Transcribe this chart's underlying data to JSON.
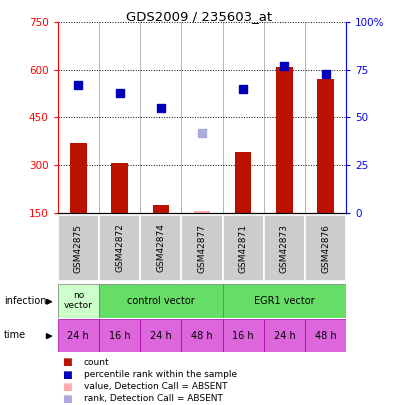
{
  "title": "GDS2009 / 235603_at",
  "samples": [
    "GSM42875",
    "GSM42872",
    "GSM42874",
    "GSM42877",
    "GSM42871",
    "GSM42873",
    "GSM42876"
  ],
  "bar_values": [
    370,
    305,
    175,
    155,
    340,
    610,
    570
  ],
  "bar_absent": [
    false,
    false,
    false,
    true,
    false,
    false,
    false
  ],
  "rank_values": [
    67,
    63,
    55,
    42,
    65,
    77,
    73
  ],
  "rank_absent": [
    false,
    false,
    false,
    true,
    false,
    false,
    false
  ],
  "ylim_left": [
    150,
    750
  ],
  "ylim_right": [
    0,
    100
  ],
  "yticks_left": [
    150,
    300,
    450,
    600,
    750
  ],
  "yticks_right": [
    0,
    25,
    50,
    75,
    100
  ],
  "time_labels": [
    "24 h",
    "16 h",
    "24 h",
    "48 h",
    "16 h",
    "24 h",
    "48 h"
  ],
  "time_color": "#dd66dd",
  "bar_color": "#bb1100",
  "rank_color": "#0000bb",
  "absent_bar_color": "#ffaaaa",
  "absent_rank_color": "#aaaadd",
  "bg_color": "#ffffff",
  "label_panel_color": "#cccccc",
  "no_vector_color": "#ccffcc",
  "group_color": "#66dd66",
  "infection_label": "infection",
  "time_label": "time",
  "legend_items": [
    {
      "color": "#bb1100",
      "label": "count"
    },
    {
      "color": "#0000bb",
      "label": "percentile rank within the sample"
    },
    {
      "color": "#ffaaaa",
      "label": "value, Detection Call = ABSENT"
    },
    {
      "color": "#aaaadd",
      "label": "rank, Detection Call = ABSENT"
    }
  ]
}
